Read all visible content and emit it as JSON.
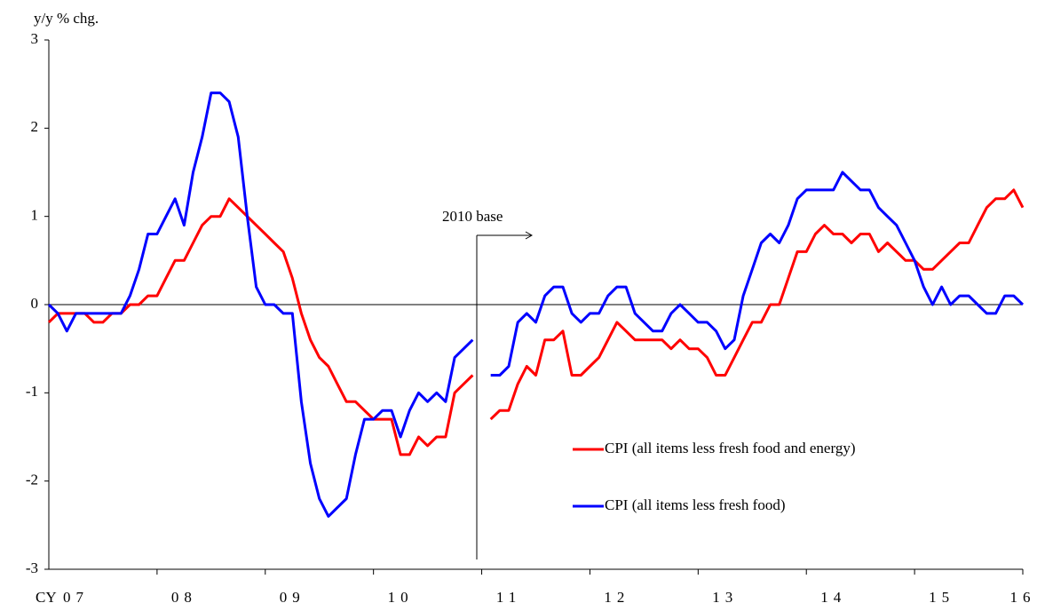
{
  "chart_data": {
    "type": "line",
    "y_label": "y/y % chg.",
    "x_label": "CY",
    "annotation": "2010 base",
    "categories": [
      null,
      null,
      null,
      "07",
      null,
      null,
      null,
      null,
      null,
      null,
      null,
      null,
      null,
      null,
      null,
      "08",
      null,
      null,
      null,
      null,
      null,
      null,
      null,
      null,
      null,
      null,
      null,
      "09",
      null,
      null,
      null,
      null,
      null,
      null,
      null,
      null,
      null,
      null,
      null,
      "10",
      null,
      null,
      null,
      null,
      null,
      null,
      null,
      null,
      null,
      null,
      null,
      "11",
      null,
      null,
      null,
      null,
      null,
      null,
      null,
      null,
      null,
      null,
      null,
      "12",
      null,
      null,
      null,
      null,
      null,
      null,
      null,
      null,
      null,
      null,
      null,
      "13",
      null,
      null,
      null,
      null,
      null,
      null,
      null,
      null,
      null,
      null,
      null,
      "14",
      null,
      null,
      null,
      null,
      null,
      null,
      null,
      null,
      null,
      null,
      null,
      "15",
      null,
      null,
      null,
      null,
      null,
      null,
      null,
      null,
      "16"
    ],
    "series": [
      {
        "name": "CPI (all items less fresh food and energy)",
        "color": "#ff0000",
        "values": [
          -0.2,
          -0.1,
          -0.1,
          -0.1,
          -0.1,
          -0.2,
          -0.2,
          -0.1,
          -0.1,
          0.0,
          0.0,
          0.1,
          0.1,
          0.3,
          0.5,
          0.5,
          0.7,
          0.9,
          1.0,
          1.0,
          1.2,
          1.1,
          1.0,
          0.9,
          0.8,
          0.7,
          0.6,
          0.3,
          -0.1,
          -0.4,
          -0.6,
          -0.7,
          -0.9,
          -1.1,
          -1.1,
          -1.2,
          -1.3,
          -1.3,
          -1.3,
          -1.7,
          -1.7,
          -1.5,
          -1.6,
          -1.5,
          -1.5,
          -1.0,
          -0.9,
          -0.8,
          null,
          -1.3,
          -1.2,
          -1.2,
          -0.9,
          -0.7,
          -0.8,
          -0.4,
          -0.4,
          -0.3,
          -0.8,
          -0.8,
          -0.7,
          -0.6,
          -0.4,
          -0.2,
          -0.3,
          -0.4,
          -0.4,
          -0.4,
          -0.4,
          -0.5,
          -0.4,
          -0.5,
          -0.5,
          -0.6,
          -0.8,
          -0.8,
          -0.6,
          -0.4,
          -0.2,
          -0.2,
          0.0,
          0.0,
          0.3,
          0.6,
          0.6,
          0.8,
          0.9,
          0.8,
          0.8,
          0.7,
          0.8,
          0.8,
          0.6,
          0.7,
          0.6,
          0.5,
          0.5,
          0.4,
          0.4,
          0.5,
          0.6,
          0.7,
          0.7,
          0.9,
          1.1,
          1.2,
          1.2,
          1.3,
          1.1
        ]
      },
      {
        "name": "CPI (all items less fresh food)",
        "color": "#0000ff",
        "values": [
          0.0,
          -0.1,
          -0.3,
          -0.1,
          -0.1,
          -0.1,
          -0.1,
          -0.1,
          -0.1,
          0.1,
          0.4,
          0.8,
          0.8,
          1.0,
          1.2,
          0.9,
          1.5,
          1.9,
          2.4,
          2.4,
          2.3,
          1.9,
          1.0,
          0.2,
          0.0,
          0.0,
          -0.1,
          -0.1,
          -1.1,
          -1.8,
          -2.2,
          -2.4,
          -2.3,
          -2.2,
          -1.7,
          -1.3,
          -1.3,
          -1.2,
          -1.2,
          -1.5,
          -1.2,
          -1.0,
          -1.1,
          -1.0,
          -1.1,
          -0.6,
          -0.5,
          -0.4,
          null,
          -0.8,
          -0.8,
          -0.7,
          -0.2,
          -0.1,
          -0.2,
          0.1,
          0.2,
          0.2,
          -0.1,
          -0.2,
          -0.1,
          -0.1,
          0.1,
          0.2,
          0.2,
          -0.1,
          -0.2,
          -0.3,
          -0.3,
          -0.1,
          0.0,
          -0.1,
          -0.2,
          -0.2,
          -0.3,
          -0.5,
          -0.4,
          0.1,
          0.4,
          0.7,
          0.8,
          0.7,
          0.9,
          1.2,
          1.3,
          1.3,
          1.3,
          1.3,
          1.5,
          1.4,
          1.3,
          1.3,
          1.1,
          1.0,
          0.9,
          0.7,
          0.5,
          0.2,
          0.0,
          0.2,
          0.0,
          0.1,
          0.1,
          0.0,
          -0.1,
          -0.1,
          0.1,
          0.1,
          0.0
        ]
      }
    ],
    "ylim": [
      -3,
      3
    ],
    "yticks": [
      -3,
      -2,
      -1,
      0,
      1,
      2,
      3
    ],
    "legend": "lower-right"
  }
}
